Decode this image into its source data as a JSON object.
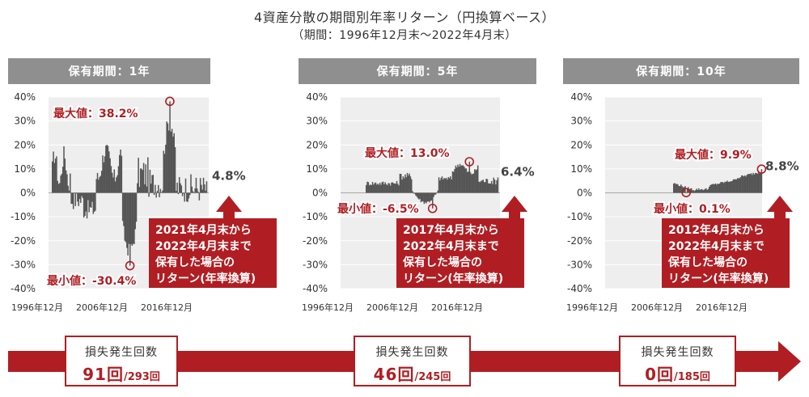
{
  "title": "4資産分散の期間別年率リターン（円換算ベース）",
  "subtitle": "（期間：1996年12月末～2022年4月末）",
  "colors": {
    "accent": "#b01e23",
    "bar": "#555555",
    "header": "#8f8f8f",
    "plot_bg": "#eeeeee"
  },
  "y_ticks": [
    "40%",
    "30%",
    "20%",
    "10%",
    "0%",
    "-10%",
    "-20%",
    "-30%",
    "-40%"
  ],
  "x_ticks": [
    "1996年12月",
    "2006年12月",
    "2016年12月"
  ],
  "chart_data": [
    {
      "type": "bar",
      "header": "保有期間：1年",
      "ylim": [
        -40,
        40
      ],
      "max_label": "最大値：38.2%",
      "min_label": "最小値：-30.4%",
      "max": 38.2,
      "min": -30.4,
      "latest_label": "4.8%",
      "latest": 4.8,
      "callout": [
        "2021年4月末から",
        "2022年4月末まで",
        "保有した場合の",
        "リターン(年率換算)"
      ],
      "loss_label": "損失発生回数",
      "loss_count": "91回",
      "loss_total": "/293回",
      "x_ticks": [
        "1996年12月",
        "2006年12月",
        "2016年12月"
      ]
    },
    {
      "type": "bar",
      "header": "保有期間：5年",
      "ylim": [
        -40,
        40
      ],
      "max_label": "最大値：13.0%",
      "min_label": "最小値：-6.5%",
      "max": 13.0,
      "min": -6.5,
      "latest_label": "6.4%",
      "latest": 6.4,
      "callout": [
        "2017年4月末から",
        "2022年4月末まで",
        "保有した場合の",
        "リターン(年率換算)"
      ],
      "loss_label": "損失発生回数",
      "loss_count": "46回",
      "loss_total": "/245回",
      "x_ticks": [
        "1996年12月",
        "2006年12月",
        "2016年12月"
      ]
    },
    {
      "type": "bar",
      "header": "保有期間：10年",
      "ylim": [
        -40,
        40
      ],
      "max_label": "最大値：9.9%",
      "min_label": "最小値：0.1%",
      "max": 9.9,
      "min": 0.1,
      "latest_label": "8.8%",
      "latest": 8.8,
      "callout": [
        "2012年4月末から",
        "2022年4月末まで",
        "保有した場合の",
        "リターン(年率換算)"
      ],
      "loss_label": "損失発生回数",
      "loss_count": "0回",
      "loss_total": "/185回",
      "x_ticks": [
        "1996年12月",
        "2006年12月",
        "2016年12月"
      ]
    }
  ]
}
